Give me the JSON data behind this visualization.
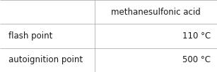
{
  "col_header": "methanesulfonic acid",
  "rows": [
    {
      "label": "flash point",
      "value": "110 °C"
    },
    {
      "label": "autoignition point",
      "value": "500 °C"
    }
  ],
  "background_color": "#ffffff",
  "border_color": "#b0b0b0",
  "header_text_color": "#1a1a1a",
  "cell_text_color": "#1a1a1a",
  "font_size": 8.5,
  "col_split": 0.435,
  "figwidth": 3.07,
  "figheight": 1.03,
  "dpi": 100
}
